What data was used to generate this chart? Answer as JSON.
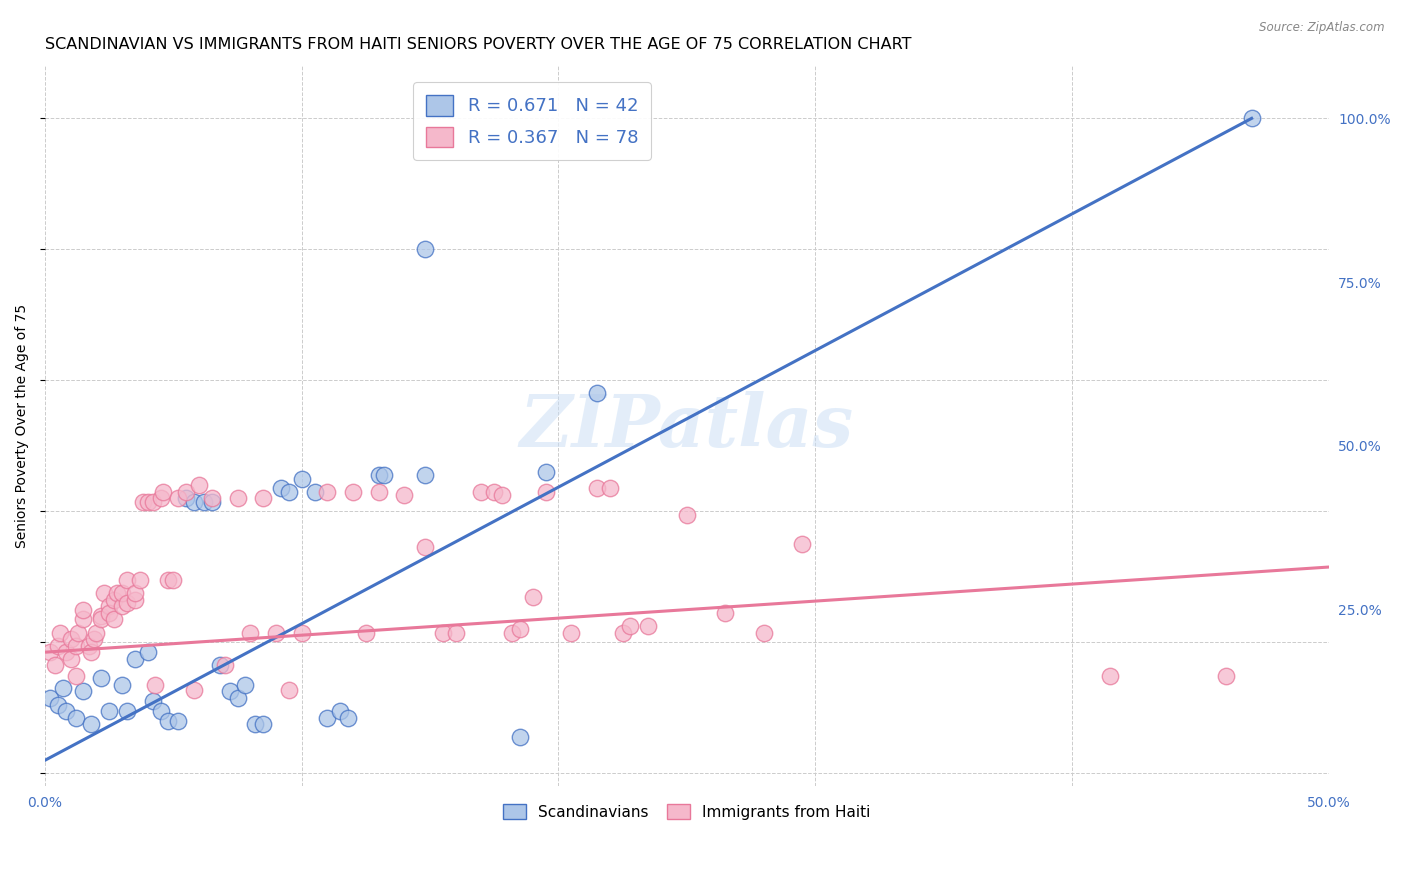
{
  "title": "SCANDINAVIAN VS IMMIGRANTS FROM HAITI SENIORS POVERTY OVER THE AGE OF 75 CORRELATION CHART",
  "source": "Source: ZipAtlas.com",
  "ylabel": "Seniors Poverty Over the Age of 75",
  "xlim": [
    0.0,
    0.5
  ],
  "ylim": [
    -0.02,
    1.08
  ],
  "blue_R": 0.671,
  "blue_N": 42,
  "pink_R": 0.367,
  "pink_N": 78,
  "blue_color": "#adc6e8",
  "pink_color": "#f5b8cb",
  "blue_line_color": "#4472c4",
  "pink_line_color": "#e8789a",
  "scatter_blue": [
    [
      0.002,
      0.115
    ],
    [
      0.005,
      0.105
    ],
    [
      0.007,
      0.13
    ],
    [
      0.008,
      0.095
    ],
    [
      0.012,
      0.085
    ],
    [
      0.015,
      0.125
    ],
    [
      0.018,
      0.075
    ],
    [
      0.022,
      0.145
    ],
    [
      0.025,
      0.095
    ],
    [
      0.03,
      0.135
    ],
    [
      0.032,
      0.095
    ],
    [
      0.035,
      0.175
    ],
    [
      0.04,
      0.185
    ],
    [
      0.042,
      0.11
    ],
    [
      0.045,
      0.095
    ],
    [
      0.048,
      0.08
    ],
    [
      0.052,
      0.08
    ],
    [
      0.055,
      0.42
    ],
    [
      0.058,
      0.415
    ],
    [
      0.062,
      0.415
    ],
    [
      0.065,
      0.415
    ],
    [
      0.068,
      0.165
    ],
    [
      0.072,
      0.125
    ],
    [
      0.075,
      0.115
    ],
    [
      0.078,
      0.135
    ],
    [
      0.082,
      0.075
    ],
    [
      0.085,
      0.075
    ],
    [
      0.092,
      0.435
    ],
    [
      0.095,
      0.43
    ],
    [
      0.1,
      0.45
    ],
    [
      0.105,
      0.43
    ],
    [
      0.11,
      0.085
    ],
    [
      0.115,
      0.095
    ],
    [
      0.118,
      0.085
    ],
    [
      0.13,
      0.455
    ],
    [
      0.132,
      0.455
    ],
    [
      0.148,
      0.455
    ],
    [
      0.148,
      0.8
    ],
    [
      0.185,
      0.055
    ],
    [
      0.195,
      0.46
    ],
    [
      0.215,
      0.58
    ],
    [
      0.47,
      1.0
    ]
  ],
  "scatter_pink": [
    [
      0.002,
      0.185
    ],
    [
      0.004,
      0.165
    ],
    [
      0.005,
      0.195
    ],
    [
      0.006,
      0.215
    ],
    [
      0.008,
      0.185
    ],
    [
      0.01,
      0.205
    ],
    [
      0.01,
      0.175
    ],
    [
      0.012,
      0.195
    ],
    [
      0.012,
      0.148
    ],
    [
      0.013,
      0.215
    ],
    [
      0.015,
      0.235
    ],
    [
      0.015,
      0.25
    ],
    [
      0.017,
      0.195
    ],
    [
      0.018,
      0.185
    ],
    [
      0.019,
      0.205
    ],
    [
      0.02,
      0.215
    ],
    [
      0.022,
      0.24
    ],
    [
      0.022,
      0.235
    ],
    [
      0.023,
      0.275
    ],
    [
      0.025,
      0.255
    ],
    [
      0.025,
      0.245
    ],
    [
      0.027,
      0.265
    ],
    [
      0.027,
      0.235
    ],
    [
      0.028,
      0.275
    ],
    [
      0.03,
      0.255
    ],
    [
      0.03,
      0.275
    ],
    [
      0.032,
      0.26
    ],
    [
      0.032,
      0.295
    ],
    [
      0.035,
      0.265
    ],
    [
      0.035,
      0.275
    ],
    [
      0.037,
      0.295
    ],
    [
      0.038,
      0.415
    ],
    [
      0.04,
      0.415
    ],
    [
      0.042,
      0.415
    ],
    [
      0.043,
      0.135
    ],
    [
      0.045,
      0.42
    ],
    [
      0.046,
      0.43
    ],
    [
      0.048,
      0.295
    ],
    [
      0.05,
      0.295
    ],
    [
      0.052,
      0.42
    ],
    [
      0.055,
      0.43
    ],
    [
      0.058,
      0.128
    ],
    [
      0.06,
      0.44
    ],
    [
      0.065,
      0.42
    ],
    [
      0.07,
      0.165
    ],
    [
      0.075,
      0.42
    ],
    [
      0.08,
      0.215
    ],
    [
      0.085,
      0.42
    ],
    [
      0.09,
      0.215
    ],
    [
      0.095,
      0.128
    ],
    [
      0.1,
      0.215
    ],
    [
      0.11,
      0.43
    ],
    [
      0.12,
      0.43
    ],
    [
      0.125,
      0.215
    ],
    [
      0.13,
      0.43
    ],
    [
      0.14,
      0.425
    ],
    [
      0.148,
      0.345
    ],
    [
      0.155,
      0.215
    ],
    [
      0.16,
      0.215
    ],
    [
      0.17,
      0.43
    ],
    [
      0.175,
      0.43
    ],
    [
      0.178,
      0.425
    ],
    [
      0.182,
      0.215
    ],
    [
      0.185,
      0.22
    ],
    [
      0.19,
      0.27
    ],
    [
      0.195,
      0.43
    ],
    [
      0.205,
      0.215
    ],
    [
      0.215,
      0.435
    ],
    [
      0.22,
      0.435
    ],
    [
      0.225,
      0.215
    ],
    [
      0.228,
      0.225
    ],
    [
      0.235,
      0.225
    ],
    [
      0.25,
      0.395
    ],
    [
      0.265,
      0.245
    ],
    [
      0.28,
      0.215
    ],
    [
      0.295,
      0.35
    ],
    [
      0.415,
      0.148
    ],
    [
      0.46,
      0.148
    ]
  ],
  "blue_line_x": [
    0.0,
    0.47
  ],
  "blue_line_y": [
    0.02,
    1.0
  ],
  "pink_line_x": [
    0.0,
    0.5
  ],
  "pink_line_y": [
    0.185,
    0.315
  ],
  "background_color": "#ffffff",
  "grid_color": "#cccccc",
  "title_fontsize": 11.5,
  "axis_label_fontsize": 10,
  "tick_fontsize": 10,
  "legend_fontsize": 13,
  "legend2_fontsize": 11
}
